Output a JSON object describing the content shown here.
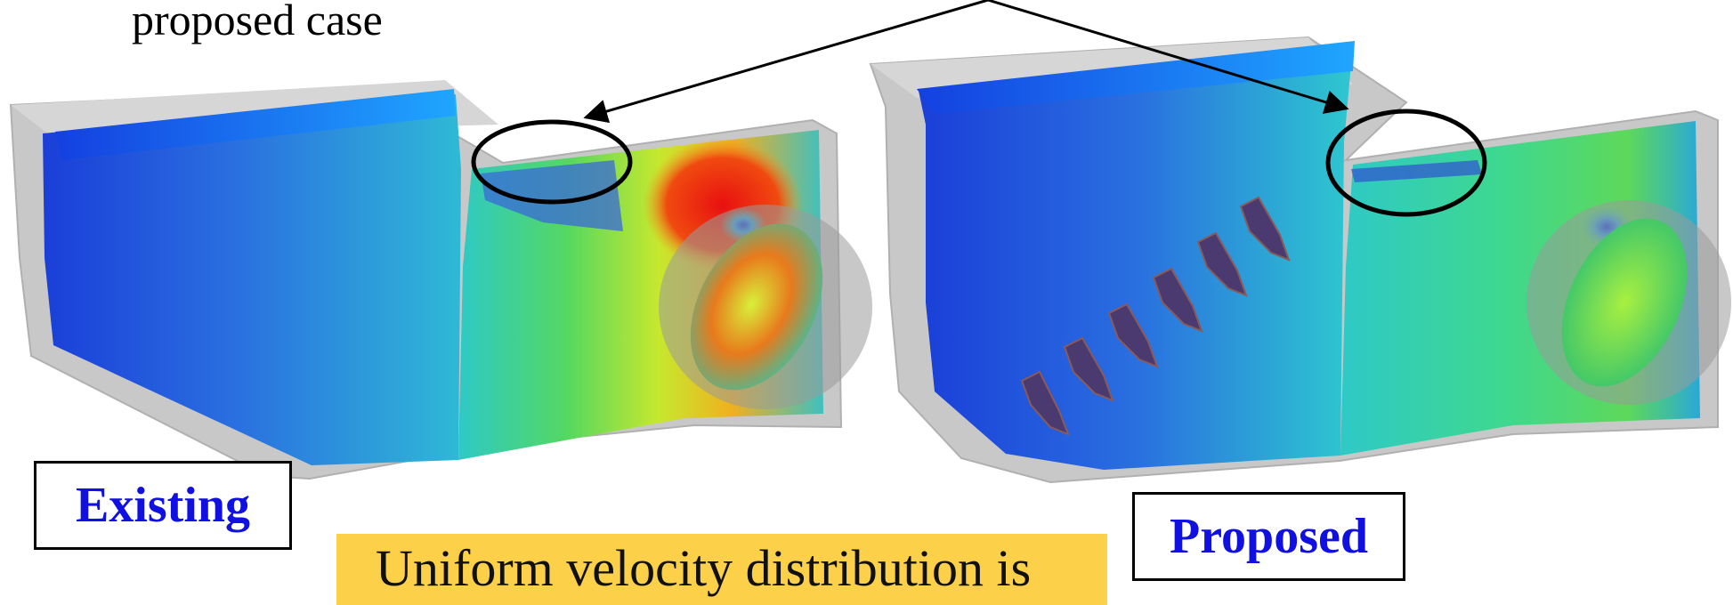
{
  "caption_text": "proposed case",
  "labels": {
    "existing": "Existing",
    "proposed": "Proposed"
  },
  "note_text": "Uniform velocity distribution is",
  "colors": {
    "label_text": "#1010e0",
    "note_background": "#fdd04a",
    "ellipse_stroke": "#000000",
    "wall_gray": "#c8c8c8"
  }
}
